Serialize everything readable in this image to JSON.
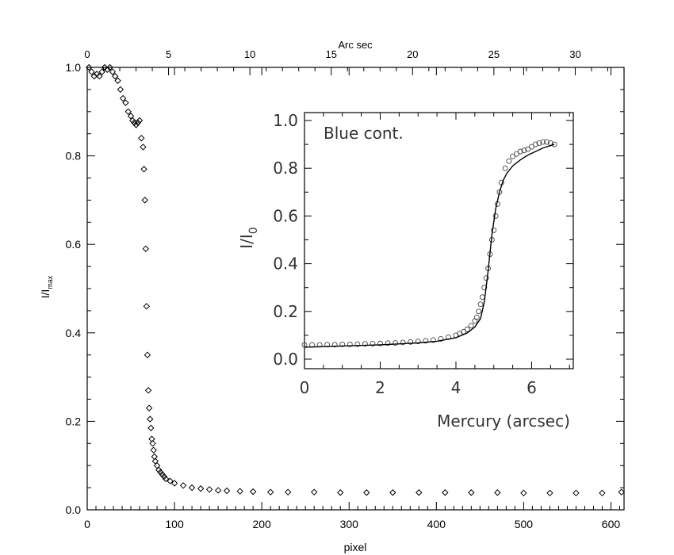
{
  "chart_data": [
    {
      "type": "scatter",
      "xlabel": "pixel",
      "ylabel": "I/I",
      "ylabel_subscript": "max",
      "top_axis_label": "Arc sec",
      "xlim": [
        0,
        615
      ],
      "ylim": [
        0,
        1.0
      ],
      "top_xlim": [
        0,
        33
      ],
      "x_ticks": [
        0,
        100,
        200,
        300,
        400,
        500,
        600
      ],
      "y_ticks": [
        0.0,
        0.2,
        0.4,
        0.6,
        0.8,
        1.0
      ],
      "top_ticks": [
        0,
        5,
        10,
        15,
        20,
        25,
        30
      ],
      "x_tick_labels": [
        "0",
        "100",
        "200",
        "300",
        "400",
        "500",
        "600"
      ],
      "y_tick_labels": [
        "0.0",
        "0.2",
        "0.4",
        "0.6",
        "0.8",
        "1.0"
      ],
      "top_tick_labels": [
        "0",
        "5",
        "10",
        "15",
        "20",
        "25",
        "30"
      ],
      "marker": "diamond",
      "series": [
        {
          "x": [
            2,
            5,
            8,
            11,
            14,
            17,
            20,
            23,
            26,
            29,
            32,
            35,
            38,
            41,
            44,
            47,
            50,
            52,
            54,
            56,
            58,
            60,
            62,
            64,
            65,
            66,
            67,
            68,
            69,
            70,
            71,
            72,
            73,
            74,
            75,
            76,
            77,
            78,
            80,
            82,
            84,
            86,
            88,
            90,
            95,
            100,
            110,
            120,
            130,
            140,
            150,
            160,
            175,
            190,
            210,
            230,
            260,
            290,
            320,
            350,
            380,
            410,
            440,
            470,
            500,
            530,
            560,
            590,
            612
          ],
          "y": [
            1.0,
            0.99,
            0.98,
            0.985,
            0.98,
            0.99,
            1.0,
            0.995,
            1.0,
            0.99,
            0.98,
            0.97,
            0.95,
            0.93,
            0.92,
            0.9,
            0.89,
            0.88,
            0.875,
            0.87,
            0.875,
            0.88,
            0.84,
            0.82,
            0.77,
            0.7,
            0.59,
            0.46,
            0.35,
            0.27,
            0.23,
            0.205,
            0.185,
            0.16,
            0.15,
            0.135,
            0.12,
            0.11,
            0.1,
            0.09,
            0.085,
            0.08,
            0.075,
            0.07,
            0.065,
            0.06,
            0.055,
            0.05,
            0.048,
            0.046,
            0.044,
            0.043,
            0.042,
            0.041,
            0.04,
            0.04,
            0.04,
            0.039,
            0.039,
            0.039,
            0.039,
            0.039,
            0.039,
            0.039,
            0.038,
            0.038,
            0.038,
            0.038,
            0.04
          ]
        }
      ]
    },
    {
      "type": "scatter",
      "title": "Blue cont.",
      "xlabel": "Mercury (arcsec)",
      "ylabel": "I/I",
      "ylabel_subscript": "0",
      "xlim": [
        0,
        7.1
      ],
      "ylim": [
        0,
        1.0
      ],
      "x_ticks": [
        0,
        2,
        4,
        6
      ],
      "y_ticks": [
        0.0,
        0.2,
        0.4,
        0.6,
        0.8,
        1.0
      ],
      "x_tick_labels": [
        "0",
        "2",
        "4",
        "6"
      ],
      "y_tick_labels": [
        "0.0",
        "0.2",
        "0.4",
        "0.6",
        "0.8",
        "1.0"
      ],
      "series": [
        {
          "marker": "circle",
          "x": [
            0.0,
            0.2,
            0.4,
            0.6,
            0.8,
            1.0,
            1.2,
            1.4,
            1.6,
            1.8,
            2.0,
            2.2,
            2.4,
            2.6,
            2.8,
            3.0,
            3.2,
            3.4,
            3.6,
            3.8,
            4.0,
            4.1,
            4.2,
            4.3,
            4.4,
            4.5,
            4.55,
            4.6,
            4.65,
            4.7,
            4.75,
            4.8,
            4.85,
            4.9,
            4.95,
            5.0,
            5.05,
            5.1,
            5.15,
            5.2,
            5.3,
            5.4,
            5.5,
            5.6,
            5.7,
            5.8,
            5.9,
            6.0,
            6.1,
            6.2,
            6.3,
            6.4,
            6.5,
            6.6
          ],
          "y": [
            0.06,
            0.06,
            0.06,
            0.061,
            0.061,
            0.062,
            0.062,
            0.063,
            0.064,
            0.065,
            0.066,
            0.067,
            0.068,
            0.07,
            0.072,
            0.074,
            0.077,
            0.08,
            0.085,
            0.092,
            0.1,
            0.107,
            0.115,
            0.125,
            0.14,
            0.16,
            0.175,
            0.2,
            0.23,
            0.26,
            0.3,
            0.34,
            0.38,
            0.44,
            0.5,
            0.54,
            0.6,
            0.65,
            0.7,
            0.74,
            0.8,
            0.83,
            0.85,
            0.86,
            0.87,
            0.875,
            0.88,
            0.89,
            0.9,
            0.905,
            0.91,
            0.91,
            0.905,
            0.9
          ]
        },
        {
          "type": "line",
          "x": [
            0.0,
            1.0,
            2.0,
            3.0,
            3.5,
            4.0,
            4.3,
            4.5,
            4.65,
            4.75,
            4.85,
            4.95,
            5.05,
            5.15,
            5.25,
            5.35,
            5.5,
            5.7,
            5.9,
            6.1,
            6.3,
            6.5,
            6.6
          ],
          "y": [
            0.05,
            0.055,
            0.06,
            0.068,
            0.075,
            0.09,
            0.11,
            0.135,
            0.17,
            0.24,
            0.37,
            0.52,
            0.63,
            0.7,
            0.75,
            0.78,
            0.81,
            0.835,
            0.855,
            0.87,
            0.885,
            0.895,
            0.9
          ]
        }
      ]
    }
  ]
}
